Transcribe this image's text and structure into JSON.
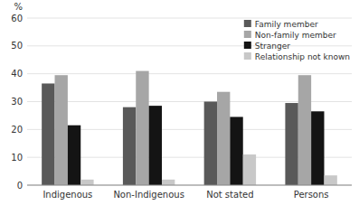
{
  "chart_data": {
    "type": "bar",
    "y_label": "%",
    "categories": [
      "Indigenous",
      "Non-Indigenous",
      "Not stated",
      "Persons"
    ],
    "series": [
      {
        "name": "Family member",
        "color": "#595959",
        "values": [
          36.5,
          28.0,
          30.0,
          29.5
        ]
      },
      {
        "name": "Non-family member",
        "color": "#a6a6a6",
        "values": [
          39.5,
          41.0,
          33.5,
          39.5
        ]
      },
      {
        "name": "Stranger",
        "color": "#141414",
        "values": [
          21.5,
          28.5,
          24.5,
          26.5
        ]
      },
      {
        "name": "Relationship not known",
        "color": "#c8c8c8",
        "values": [
          2.0,
          2.0,
          11.0,
          3.5
        ]
      }
    ],
    "ylim": [
      0,
      60
    ],
    "yticks": [
      0,
      10,
      20,
      30,
      40,
      50,
      60
    ],
    "grid": true,
    "legend": "upper right"
  }
}
